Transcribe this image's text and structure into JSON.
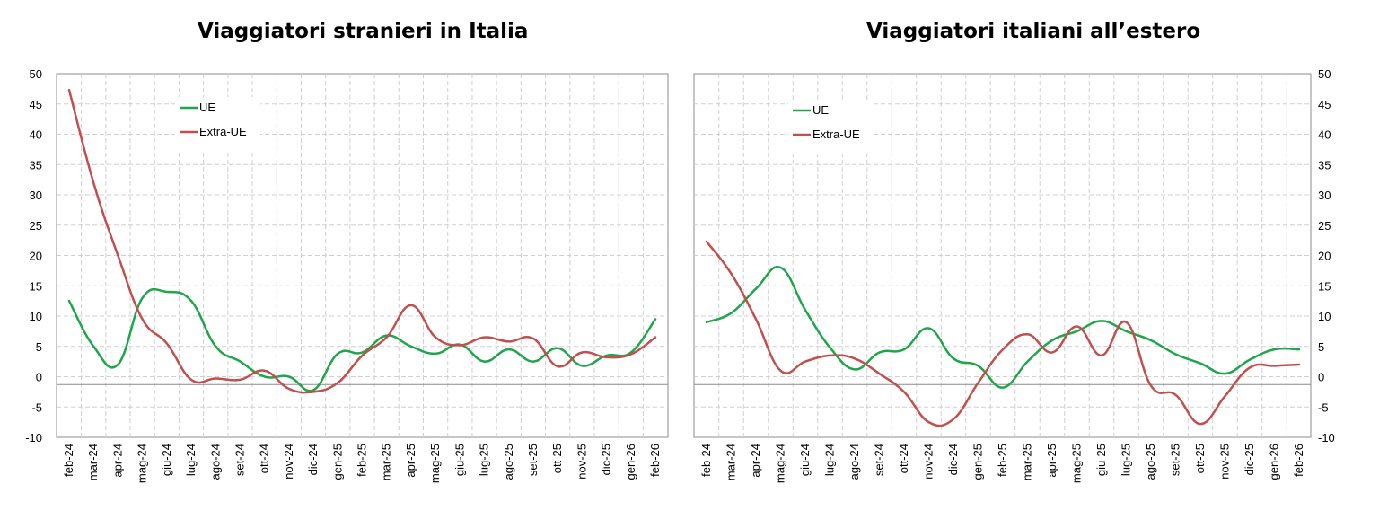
{
  "chart_data": [
    {
      "type": "line",
      "title": "Viaggiatori stranieri in Italia",
      "x": [
        "feb-24",
        "mar-24",
        "apr-24",
        "mag-24",
        "giu-24",
        "lug-24",
        "ago-24",
        "set-24",
        "ott-24",
        "nov-24",
        "dic-24",
        "gen-25",
        "feb-25",
        "mar-25",
        "apr-25",
        "mag-25",
        "giu-25",
        "lug-25",
        "ago-25",
        "set-25",
        "ott-25",
        "nov-25",
        "dic-25",
        "gen-26",
        "feb-26"
      ],
      "ylim": [
        -10,
        50
      ],
      "yticks": [
        50,
        45,
        40,
        35,
        30,
        25,
        20,
        15,
        10,
        5,
        0,
        -5,
        -10
      ],
      "grid": true,
      "legend_position": "top-left",
      "series": [
        {
          "name": "UE",
          "color": "#1fa64a",
          "values": [
            12.5,
            5,
            2,
            13,
            14,
            12.5,
            5,
            2.5,
            0,
            0,
            -2.2,
            3.8,
            4,
            6.8,
            5,
            3.8,
            5.3,
            2.5,
            4.5,
            2.5,
            4.7,
            1.8,
            3.5,
            4,
            9.5
          ]
        },
        {
          "name": "Extra-UE",
          "color": "#c0504d",
          "values": [
            47.3,
            32,
            20,
            9.5,
            5.5,
            -0.5,
            -0.3,
            -0.5,
            1,
            -2,
            -2.5,
            -1,
            3.5,
            6.5,
            11.8,
            6.5,
            5.2,
            6.5,
            5.8,
            6.3,
            1.7,
            4,
            3.2,
            3.7,
            6.5
          ]
        }
      ]
    },
    {
      "type": "line",
      "title": "Viaggiatori italiani all’estero",
      "x": [
        "feb-24",
        "mar-24",
        "apr-24",
        "mag-24",
        "giu-24",
        "lug-24",
        "ago-24",
        "set-24",
        "ott-24",
        "nov-24",
        "dic-24",
        "gen-25",
        "feb-25",
        "mar-25",
        "apr-25",
        "mag-25",
        "giu-25",
        "lug-25",
        "ago-25",
        "set-25",
        "ott-25",
        "nov-25",
        "dic-25",
        "gen-26",
        "feb-26"
      ],
      "ylim": [
        -10,
        50
      ],
      "yticks": [
        50,
        45,
        40,
        35,
        30,
        25,
        20,
        15,
        10,
        5,
        0,
        -5,
        -10
      ],
      "grid": true,
      "legend_position": "top-left",
      "series": [
        {
          "name": "UE",
          "color": "#1fa64a",
          "values": [
            9,
            10.5,
            14.5,
            18,
            11,
            4.8,
            1.2,
            4,
            4.5,
            8,
            3,
            1.8,
            -1.8,
            2.5,
            6,
            7.5,
            9.2,
            7.5,
            6,
            3.7,
            2.2,
            0.5,
            2.8,
            4.5,
            4.5
          ]
        },
        {
          "name": "Extra-UE",
          "color": "#c0504d",
          "values": [
            22.3,
            17,
            9.5,
            1,
            2.5,
            3.5,
            3,
            0.5,
            -2.5,
            -7.5,
            -7,
            -1,
            4.5,
            7,
            4,
            8.3,
            3.5,
            9,
            -1.5,
            -3,
            -7.8,
            -3.2,
            1.5,
            1.8,
            2
          ]
        }
      ]
    }
  ]
}
